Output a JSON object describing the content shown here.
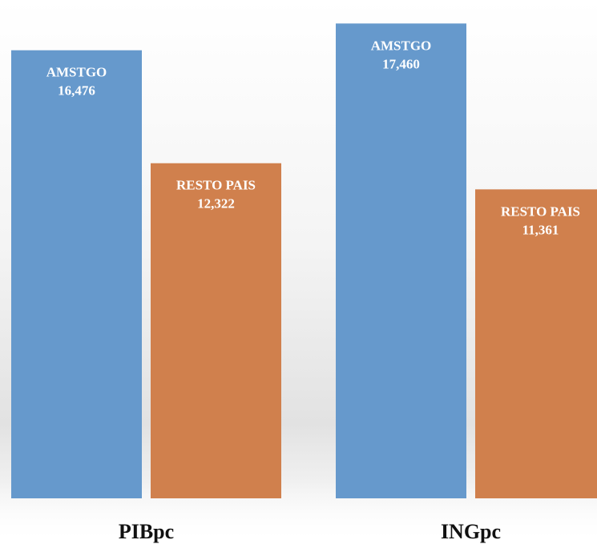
{
  "chart_data": {
    "type": "bar",
    "title": "",
    "xlabel": "",
    "ylabel": "",
    "ylim": [
      0,
      18000
    ],
    "grid": false,
    "legend": "none",
    "categories": [
      "PIBpc",
      "INGpc"
    ],
    "series": [
      {
        "name": "AMSTGO",
        "color": "#6699cc",
        "values": [
          16476,
          17460
        ],
        "value_labels": [
          "16,476",
          "17,460"
        ]
      },
      {
        "name": "RESTO PAIS",
        "color": "#d0804d",
        "values": [
          12322,
          11361
        ],
        "value_labels": [
          "12,322",
          "11,361"
        ]
      }
    ]
  }
}
